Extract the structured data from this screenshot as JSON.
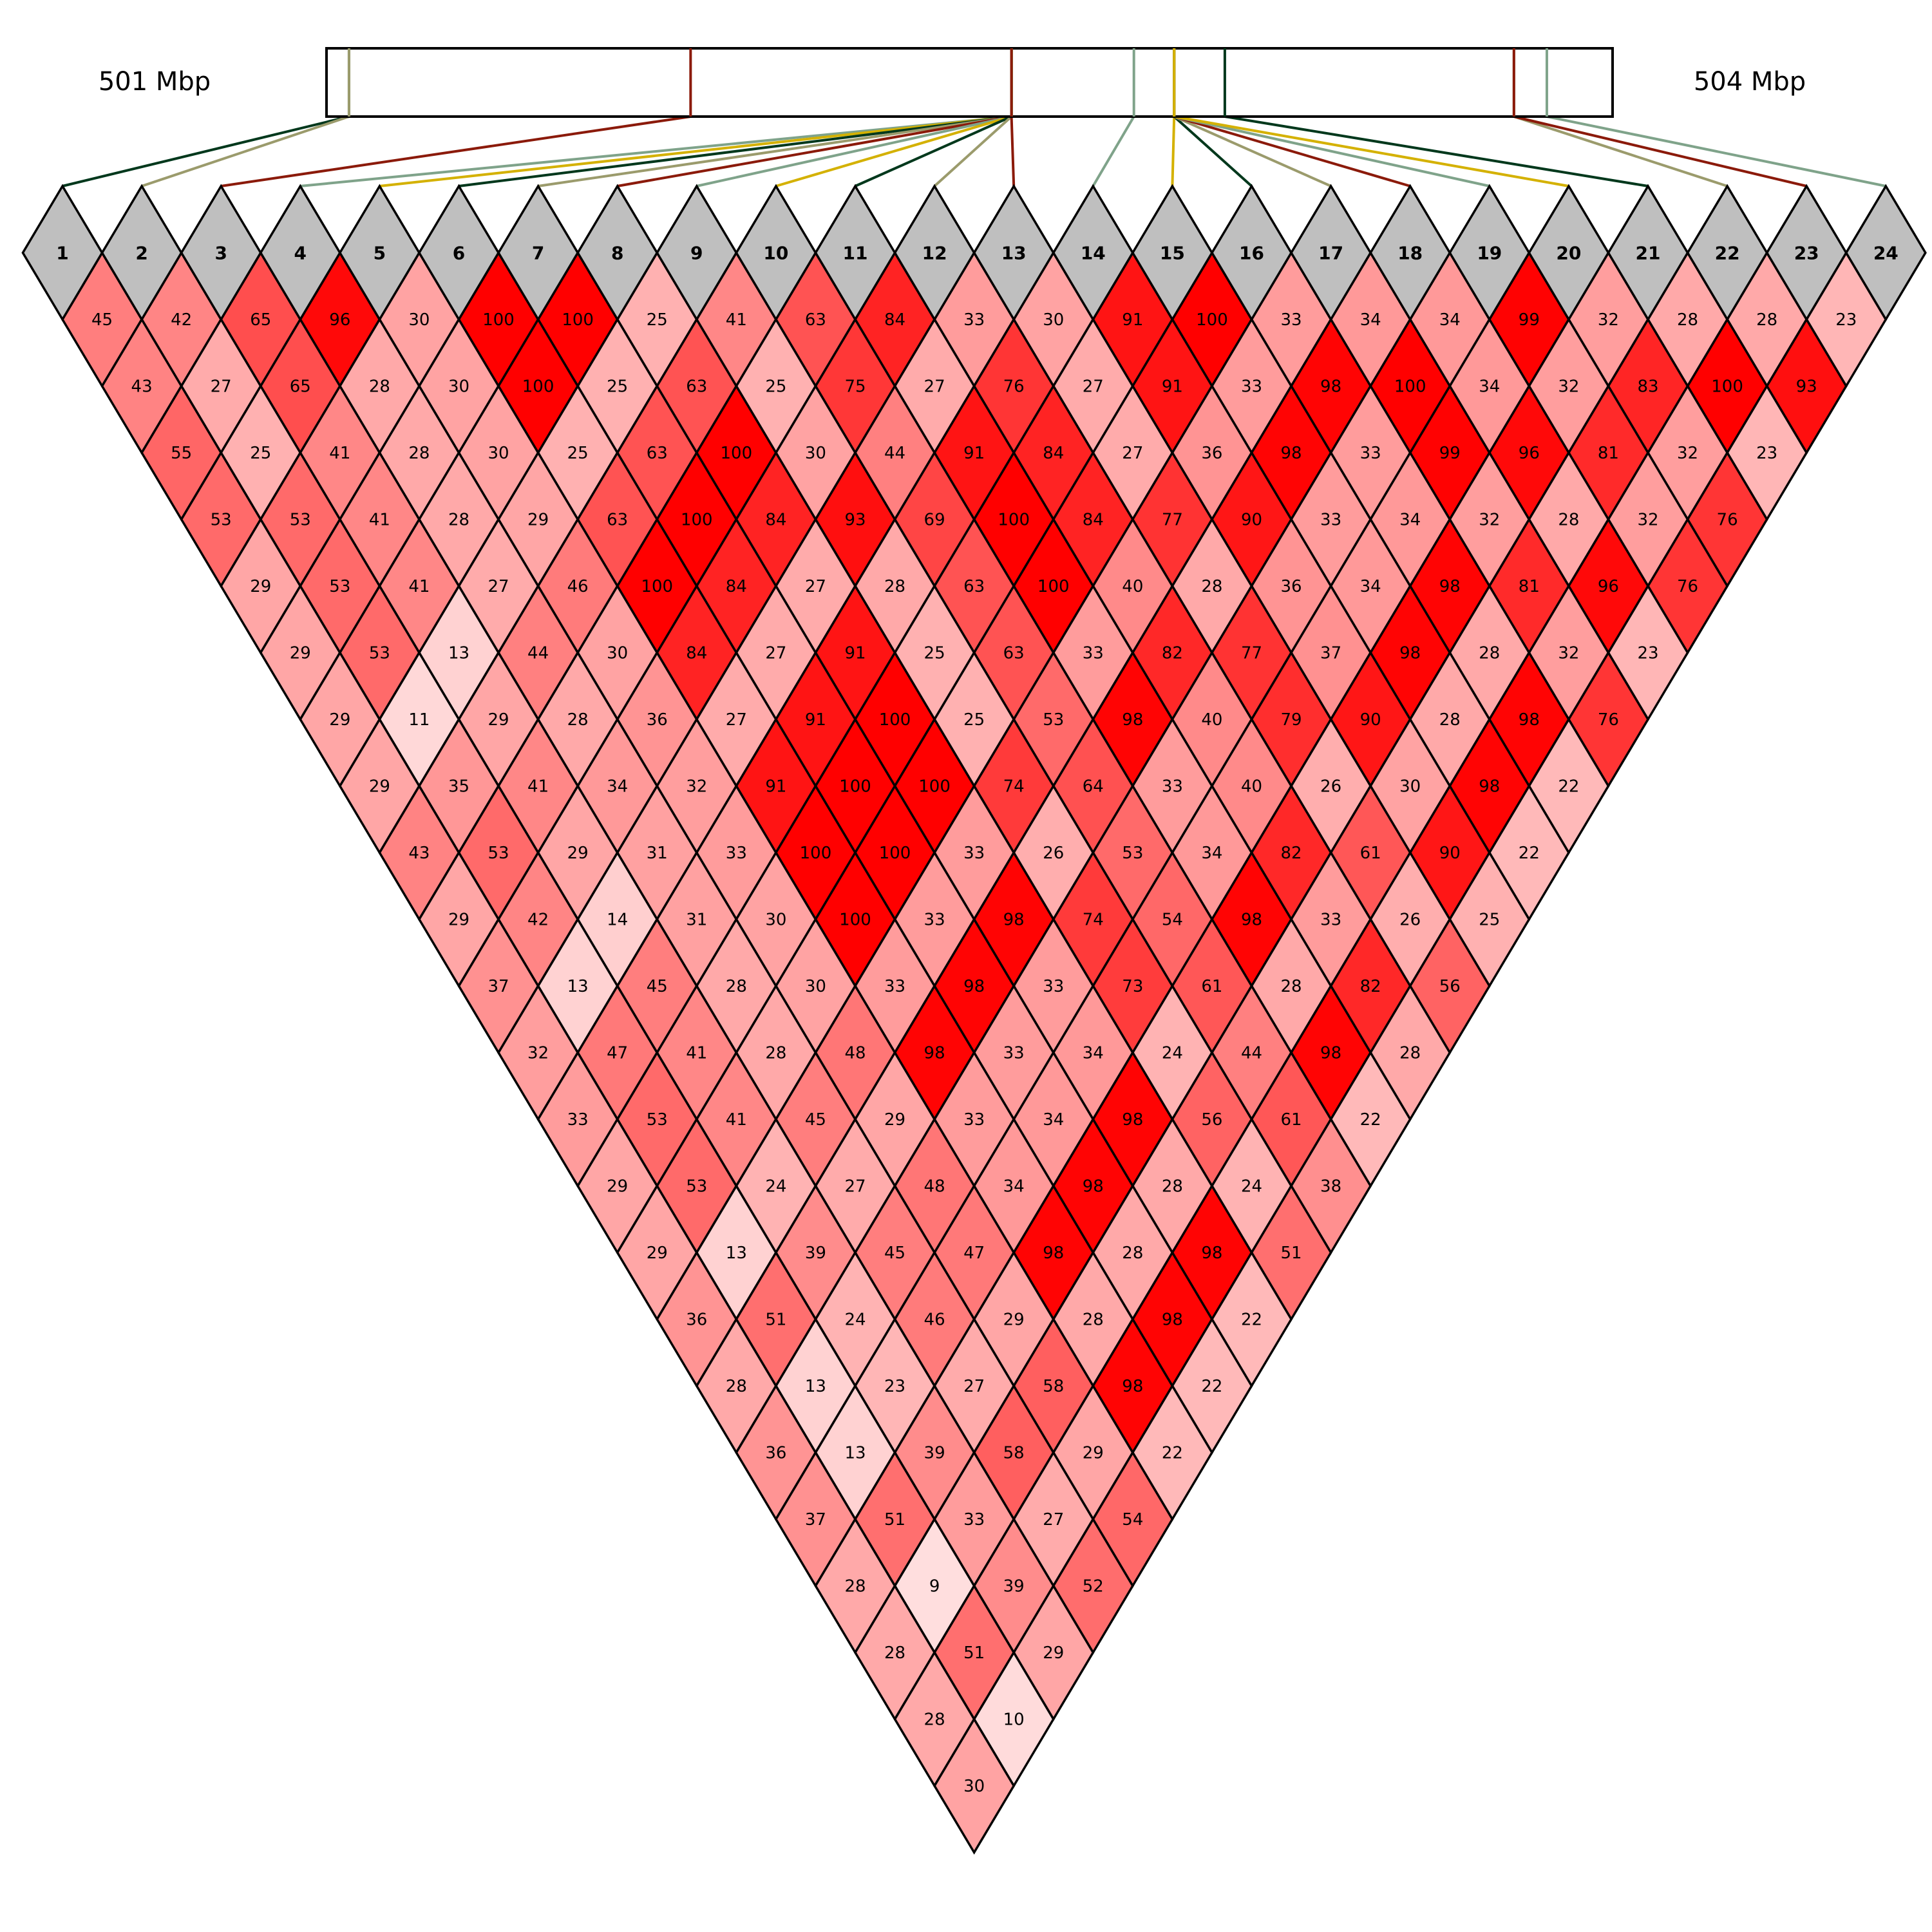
{
  "region": {
    "start_label": "501 Mbp",
    "end_label": "504 Mbp"
  },
  "chart_data": {
    "type": "heatmap",
    "chart_kind": "LD heatmap (pairwise linkage disequilibrium triangle)",
    "marker_ids": [
      "1",
      "2",
      "3",
      "4",
      "5",
      "6",
      "7",
      "8",
      "9",
      "10",
      "11",
      "12",
      "13",
      "14",
      "15",
      "16",
      "17",
      "18",
      "19",
      "20",
      "21",
      "22",
      "23",
      "24"
    ],
    "marker_bar_positions": [
      0.0175,
      0.0175,
      0.2831,
      0.5326,
      0.5326,
      0.5326,
      0.5326,
      0.5326,
      0.5326,
      0.5326,
      0.5326,
      0.5326,
      0.5326,
      0.6278,
      0.6591,
      0.6591,
      0.6591,
      0.6591,
      0.6591,
      0.6591,
      0.6985,
      0.9233,
      0.9233,
      0.9489
    ],
    "marker_line_colors": [
      "#00381c",
      "#9b9b6c",
      "#8b1a0a",
      "#7fa38a",
      "#d4b100",
      "#00381c",
      "#9b9b6c",
      "#8b1a0a",
      "#7fa38a",
      "#d4b100",
      "#00381c",
      "#9b9b6c",
      "#8b1a0a",
      "#7fa38a",
      "#d4b100",
      "#00381c",
      "#9b9b6c",
      "#8b1a0a",
      "#7fa38a",
      "#d4b100",
      "#00381c",
      "#9b9b6c",
      "#8b1a0a",
      "#7fa38a"
    ],
    "value_scale": {
      "min": 0,
      "max": 100,
      "low_color": "#ffffff",
      "high_color": "#ff0000"
    },
    "ld_rows": [
      [
        45,
        42,
        65,
        96,
        30,
        100,
        100,
        25,
        41,
        63,
        84,
        33,
        30,
        91,
        100,
        33,
        34,
        34,
        99,
        32,
        28,
        28,
        23
      ],
      [
        43,
        27,
        65,
        28,
        30,
        100,
        25,
        63,
        25,
        75,
        27,
        76,
        27,
        91,
        33,
        98,
        100,
        34,
        32,
        83,
        100,
        93
      ],
      [
        55,
        25,
        41,
        28,
        30,
        25,
        63,
        100,
        30,
        44,
        91,
        84,
        27,
        36,
        98,
        33,
        99,
        96,
        81,
        32,
        23
      ],
      [
        53,
        53,
        41,
        28,
        29,
        63,
        100,
        84,
        93,
        69,
        100,
        84,
        77,
        90,
        33,
        34,
        32,
        28,
        32,
        76
      ],
      [
        29,
        53,
        41,
        27,
        46,
        100,
        84,
        27,
        28,
        63,
        100,
        40,
        28,
        36,
        34,
        98,
        81,
        96,
        76
      ],
      [
        29,
        53,
        13,
        44,
        30,
        84,
        27,
        91,
        25,
        63,
        33,
        82,
        77,
        37,
        98,
        28,
        32,
        23
      ],
      [
        29,
        11,
        29,
        28,
        36,
        27,
        91,
        100,
        25,
        53,
        98,
        40,
        79,
        90,
        28,
        98,
        76
      ],
      [
        29,
        35,
        41,
        34,
        32,
        91,
        100,
        100,
        74,
        64,
        33,
        40,
        26,
        30,
        98,
        22
      ],
      [
        43,
        53,
        29,
        31,
        33,
        100,
        100,
        33,
        26,
        53,
        34,
        82,
        61,
        90,
        22
      ],
      [
        29,
        42,
        14,
        31,
        30,
        100,
        33,
        98,
        74,
        54,
        98,
        33,
        26,
        25
      ],
      [
        37,
        13,
        45,
        28,
        30,
        33,
        98,
        33,
        73,
        61,
        28,
        82,
        56
      ],
      [
        32,
        47,
        41,
        28,
        48,
        98,
        33,
        34,
        24,
        44,
        98,
        28
      ],
      [
        33,
        53,
        41,
        45,
        29,
        33,
        34,
        98,
        56,
        61,
        22
      ],
      [
        29,
        53,
        24,
        27,
        48,
        34,
        98,
        28,
        24,
        38
      ],
      [
        29,
        13,
        39,
        45,
        47,
        98,
        28,
        98,
        51
      ],
      [
        36,
        51,
        24,
        46,
        29,
        28,
        98,
        22
      ],
      [
        28,
        13,
        23,
        27,
        58,
        98,
        22
      ],
      [
        36,
        13,
        39,
        58,
        29,
        22
      ],
      [
        37,
        51,
        33,
        27,
        54
      ],
      [
        28,
        9,
        39,
        52
      ],
      [
        28,
        51,
        29
      ],
      [
        28,
        10
      ],
      [
        30
      ]
    ]
  }
}
